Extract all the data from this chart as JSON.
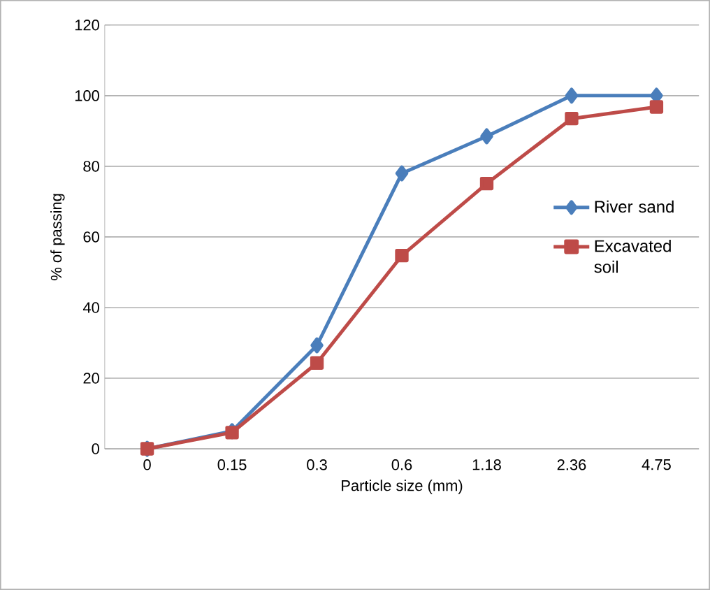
{
  "chart_data": {
    "type": "line",
    "xlabel": "Particle size (mm)",
    "ylabel": "% of passing",
    "categories": [
      "0",
      "0.15",
      "0.3",
      "0.6",
      "1.18",
      "2.36",
      "4.75"
    ],
    "series": [
      {
        "name": "River sand",
        "color": "#4a7ebb",
        "marker": "diamond",
        "values": [
          0,
          5,
          29.3,
          78,
          88.5,
          100,
          100
        ]
      },
      {
        "name": "Excavated soil",
        "color": "#be4b48",
        "marker": "square",
        "values": [
          0,
          4.6,
          24.3,
          54.7,
          75.1,
          93.5,
          96.8
        ]
      }
    ],
    "ylim": [
      0,
      120
    ],
    "yticks": [
      0,
      20,
      40,
      60,
      80,
      100,
      120
    ],
    "grid": "y",
    "legend": "right",
    "line_style": "solid"
  }
}
